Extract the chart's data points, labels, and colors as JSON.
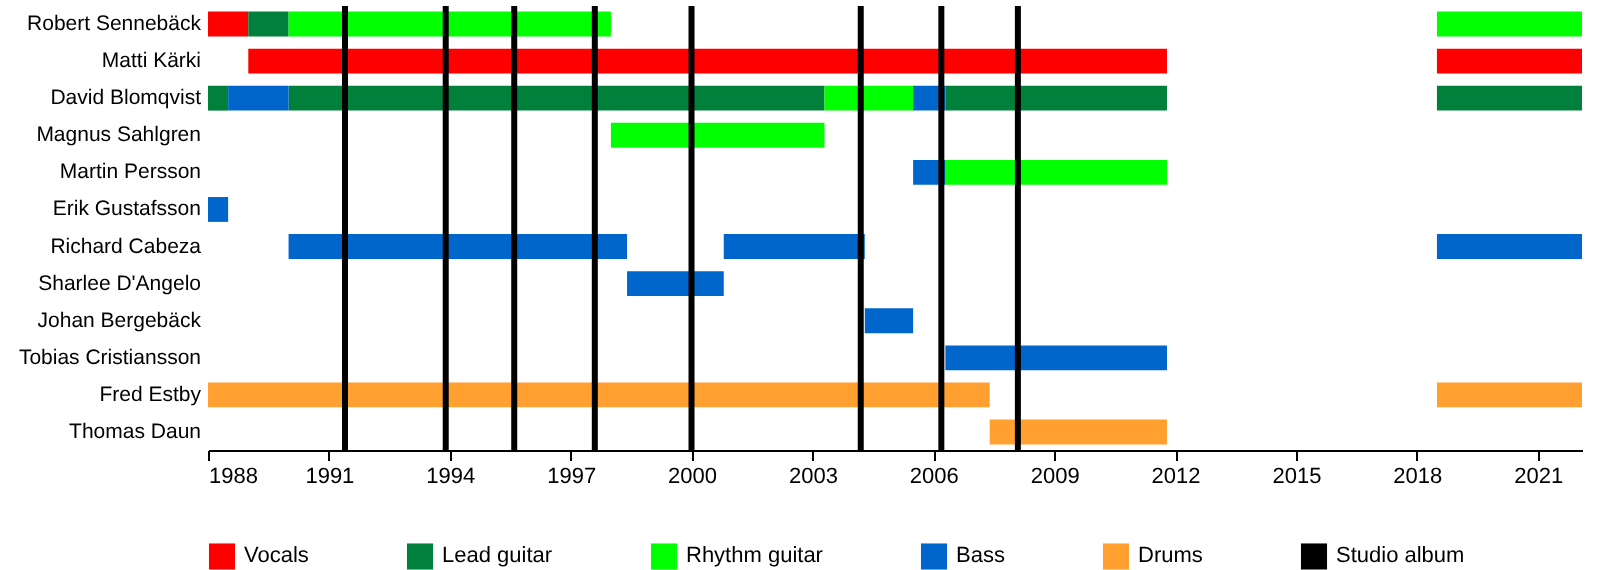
{
  "chart_data": {
    "type": "bar",
    "orientation": "horizontal",
    "categories": [
      "Robert Sennebäck",
      "Matti Kärki",
      "David Blomqvist",
      "Magnus Sahlgren",
      "Martin Persson",
      "Erik Gustafsson",
      "Richard Cabeza",
      "Sharlee D'Angelo",
      "Johan Bergebäck",
      "Tobias Cristiansson",
      "Fred Estby",
      "Thomas Daun"
    ],
    "series": [
      {
        "name": "Vocals",
        "color": "#ff0000",
        "values": [
          1.0,
          22.8,
          null,
          null,
          null,
          null,
          null,
          null,
          null,
          null,
          null,
          null
        ],
        "base": [
          1988,
          1989,
          null,
          null,
          null,
          null,
          null,
          null,
          null,
          null,
          null,
          null
        ]
      },
      {
        "color": "#ff0000",
        "values": [
          null,
          3.6,
          null,
          null,
          null,
          null,
          null,
          null,
          null,
          null,
          null,
          null
        ],
        "base": [
          null,
          2018.5,
          null,
          null,
          null,
          null,
          null,
          null,
          null,
          null,
          null,
          null
        ]
      },
      {
        "name": "Lead guitar",
        "color": "#00803a",
        "values": [
          1.0,
          null,
          0.5,
          null,
          null,
          null,
          null,
          null,
          null,
          null,
          null,
          null
        ],
        "base": [
          1989,
          null,
          1988,
          null,
          null,
          null,
          null,
          null,
          null,
          null,
          null,
          null
        ]
      },
      {
        "color": "#00803a",
        "values": [
          null,
          null,
          13.3,
          null,
          null,
          null,
          null,
          null,
          null,
          null,
          null,
          null
        ],
        "base": [
          null,
          null,
          1990,
          null,
          null,
          null,
          null,
          null,
          null,
          null,
          null,
          null
        ]
      },
      {
        "color": "#00803a",
        "values": [
          null,
          null,
          5.5,
          null,
          null,
          null,
          null,
          null,
          null,
          null,
          null,
          null
        ],
        "base": [
          null,
          null,
          2006.3,
          null,
          null,
          null,
          null,
          null,
          null,
          null,
          null,
          null
        ]
      },
      {
        "color": "#00803a",
        "values": [
          null,
          null,
          3.6,
          null,
          null,
          null,
          null,
          null,
          null,
          null,
          null,
          null
        ],
        "base": [
          null,
          null,
          2018.5,
          null,
          null,
          null,
          null,
          null,
          null,
          null,
          null,
          null
        ]
      },
      {
        "name": "Rhythm guitar",
        "color": "#00ff00",
        "values": [
          8.0,
          null,
          2.2,
          5.3,
          5.5,
          null,
          null,
          null,
          null,
          null,
          null,
          null
        ],
        "base": [
          1990,
          null,
          2003.3,
          1998.0,
          2006.3,
          null,
          null,
          null,
          null,
          null,
          null,
          null
        ]
      },
      {
        "color": "#00ff00",
        "values": [
          3.6,
          null,
          null,
          null,
          null,
          null,
          null,
          null,
          null,
          null,
          null,
          null
        ],
        "base": [
          2018.5,
          null,
          null,
          null,
          null,
          null,
          null,
          null,
          null,
          null,
          null,
          null
        ]
      },
      {
        "name": "Bass",
        "color": "#0066cc",
        "values": [
          null,
          null,
          1.5,
          null,
          0.8,
          0.5,
          8.4,
          2.4,
          1.2,
          5.5,
          null,
          null
        ],
        "base": [
          null,
          null,
          1988.5,
          null,
          2005.5,
          1988,
          1990,
          1998.4,
          2004.3,
          2006.3,
          null,
          null
        ]
      },
      {
        "color": "#0066cc",
        "values": [
          null,
          null,
          0.8,
          null,
          null,
          null,
          3.5,
          null,
          null,
          null,
          null,
          null
        ],
        "base": [
          null,
          null,
          2005.5,
          null,
          null,
          null,
          2000.8,
          null,
          null,
          null,
          null,
          null
        ]
      },
      {
        "color": "#0066cc",
        "values": [
          null,
          null,
          null,
          null,
          null,
          null,
          3.6,
          null,
          null,
          null,
          null,
          null
        ],
        "base": [
          null,
          null,
          null,
          null,
          null,
          null,
          2018.5,
          null,
          null,
          null,
          null,
          null
        ]
      },
      {
        "name": "Drums",
        "color": "#ffa030",
        "values": [
          null,
          null,
          null,
          null,
          null,
          null,
          null,
          null,
          null,
          null,
          19.4,
          4.4
        ],
        "base": [
          null,
          null,
          null,
          null,
          null,
          null,
          null,
          null,
          null,
          null,
          1988,
          2007.4
        ]
      },
      {
        "color": "#ffa030",
        "values": [
          null,
          null,
          null,
          null,
          null,
          null,
          null,
          null,
          null,
          null,
          3.6,
          null
        ],
        "base": [
          null,
          null,
          null,
          null,
          null,
          null,
          null,
          null,
          null,
          null,
          2018.5,
          null
        ]
      }
    ],
    "ref_lines": [
      {
        "axis": "x",
        "value": 1991.4,
        "label": "Studio album",
        "color": "#000000"
      },
      {
        "axis": "x",
        "value": 1993.9,
        "color": "#000000"
      },
      {
        "axis": "x",
        "value": 1995.6,
        "color": "#000000"
      },
      {
        "axis": "x",
        "value": 1997.6,
        "color": "#000000"
      },
      {
        "axis": "x",
        "value": 2000.0,
        "color": "#000000"
      },
      {
        "axis": "x",
        "value": 2004.2,
        "color": "#000000"
      },
      {
        "axis": "x",
        "value": 2006.2,
        "color": "#000000"
      },
      {
        "axis": "x",
        "value": 2008.1,
        "color": "#000000"
      }
    ],
    "xlim": [
      1988,
      2022.1
    ],
    "xticks": [
      1988,
      1991,
      1994,
      1997,
      2000,
      2003,
      2006,
      2009,
      2012,
      2015,
      2018,
      2021
    ],
    "grid": false,
    "legend": "bottom"
  }
}
